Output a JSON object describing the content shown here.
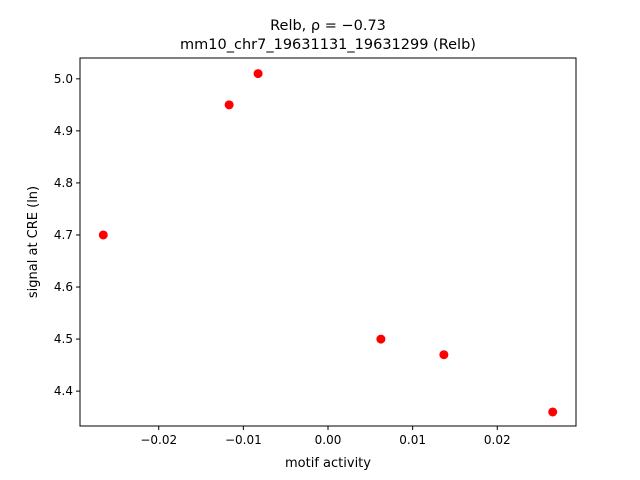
{
  "chart_data": {
    "type": "scatter",
    "title": [
      "Relb, ρ = −0.73",
      "mm10_chr7_19631131_19631299 (Relb)"
    ],
    "x_label": "motif activity",
    "y_label": "signal at CRE (ln)",
    "color": "#ff0000",
    "x": [
      -0.02655,
      -0.01168,
      -0.00826,
      0.00625,
      0.01369,
      0.02655
    ],
    "values": [
      4.7,
      4.95,
      5.01,
      4.5,
      4.47,
      4.36
    ],
    "xlim": [
      -0.0293,
      0.0293
    ],
    "ylim": [
      4.333,
      5.04
    ],
    "xticks": [
      {
        "value": -0.02,
        "label": "−0.02"
      },
      {
        "value": -0.01,
        "label": "−0.01"
      },
      {
        "value": 0,
        "label": "0.00"
      },
      0.01,
      0.02
    ],
    "yticks": [
      4.4,
      4.5,
      4.6,
      4.7,
      4.8,
      4.9,
      {
        "value": 5.0,
        "label": "5.0"
      }
    ]
  }
}
